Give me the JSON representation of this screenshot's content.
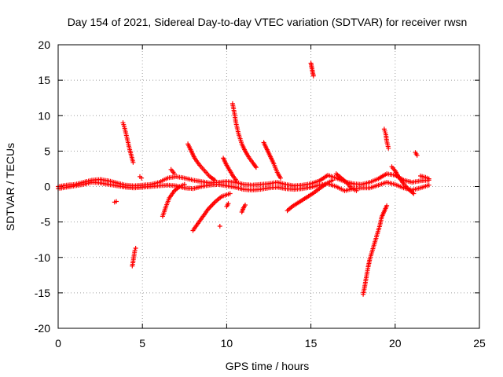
{
  "chart_data": {
    "type": "scatter",
    "title": "Day 154 of 2021, Sidereal Day-to-day VTEC variation (SDTVAR) for receiver rwsn",
    "xlabel": "GPS time / hours",
    "ylabel": "SDTVAR / TECUs",
    "xlim": [
      0,
      25
    ],
    "ylim": [
      -20,
      20
    ],
    "xticks": [
      0,
      5,
      10,
      15,
      20,
      25
    ],
    "yticks": [
      -20,
      -15,
      -10,
      -5,
      0,
      5,
      10,
      15,
      20
    ],
    "grid": true,
    "marker": "+",
    "colors": {
      "series": "#ff0000",
      "axes": "#000000",
      "grid": "#a0a0a0"
    },
    "series": [
      {
        "name": "SDTVAR",
        "tracks": [
          [
            [
              0.0,
              0.0
            ],
            [
              0.5,
              0.2
            ],
            [
              1.0,
              0.3
            ],
            [
              1.5,
              0.6
            ],
            [
              2.0,
              0.9
            ],
            [
              2.5,
              1.0
            ],
            [
              3.0,
              0.8
            ],
            [
              3.5,
              0.5
            ],
            [
              4.0,
              0.2
            ],
            [
              4.5,
              0.1
            ],
            [
              5.0,
              0.2
            ],
            [
              5.5,
              0.3
            ],
            [
              6.0,
              0.6
            ],
            [
              6.5,
              1.2
            ],
            [
              7.0,
              1.4
            ],
            [
              7.5,
              1.2
            ],
            [
              8.0,
              0.9
            ],
            [
              8.5,
              0.7
            ],
            [
              9.0,
              0.5
            ],
            [
              9.5,
              0.6
            ],
            [
              10.0,
              0.7
            ],
            [
              10.5,
              0.6
            ],
            [
              11.0,
              0.3
            ],
            [
              11.5,
              0.2
            ],
            [
              12.0,
              0.3
            ],
            [
              12.5,
              0.4
            ],
            [
              13.0,
              0.6
            ],
            [
              13.5,
              0.3
            ],
            [
              14.0,
              0.1
            ],
            [
              14.5,
              0.2
            ],
            [
              15.0,
              0.4
            ],
            [
              15.5,
              0.8
            ],
            [
              16.0,
              1.6
            ],
            [
              16.5,
              1.2
            ],
            [
              17.0,
              0.7
            ],
            [
              17.5,
              0.4
            ],
            [
              18.0,
              0.3
            ],
            [
              18.5,
              0.6
            ],
            [
              19.0,
              1.1
            ],
            [
              19.5,
              1.8
            ],
            [
              20.0,
              1.6
            ],
            [
              20.5,
              0.9
            ],
            [
              21.0,
              0.6
            ],
            [
              21.5,
              0.8
            ],
            [
              22.0,
              0.9
            ]
          ],
          [
            [
              0.0,
              -0.3
            ],
            [
              0.5,
              -0.1
            ],
            [
              1.0,
              0.1
            ],
            [
              1.5,
              0.3
            ],
            [
              2.0,
              0.6
            ],
            [
              2.5,
              0.5
            ],
            [
              3.0,
              0.3
            ],
            [
              3.5,
              0.1
            ],
            [
              4.0,
              -0.1
            ],
            [
              4.5,
              -0.2
            ],
            [
              5.0,
              -0.1
            ],
            [
              5.5,
              0.0
            ],
            [
              6.0,
              0.1
            ],
            [
              6.5,
              0.2
            ],
            [
              7.0,
              0.1
            ],
            [
              7.5,
              -0.2
            ],
            [
              8.0,
              -0.3
            ],
            [
              8.5,
              0.0
            ],
            [
              9.0,
              0.2
            ],
            [
              9.5,
              0.3
            ],
            [
              10.0,
              0.1
            ],
            [
              10.5,
              -0.1
            ],
            [
              11.0,
              -0.4
            ],
            [
              11.5,
              -0.5
            ],
            [
              12.0,
              -0.4
            ],
            [
              12.5,
              -0.2
            ],
            [
              13.0,
              -0.1
            ],
            [
              13.5,
              -0.3
            ],
            [
              14.0,
              -0.4
            ],
            [
              14.5,
              -0.3
            ],
            [
              15.0,
              -0.1
            ],
            [
              15.5,
              0.2
            ],
            [
              16.0,
              0.4
            ],
            [
              16.5,
              0.0
            ],
            [
              17.0,
              -0.6
            ],
            [
              17.5,
              -0.3
            ],
            [
              18.0,
              -0.2
            ],
            [
              18.5,
              -0.2
            ],
            [
              19.0,
              0.2
            ],
            [
              19.5,
              0.6
            ],
            [
              20.0,
              0.3
            ],
            [
              20.5,
              -0.2
            ],
            [
              21.0,
              -0.5
            ],
            [
              21.5,
              -0.2
            ],
            [
              22.0,
              0.2
            ]
          ],
          [
            [
              3.85,
              9.0
            ],
            [
              3.95,
              8.2
            ],
            [
              4.05,
              7.2
            ],
            [
              4.15,
              6.2
            ],
            [
              4.25,
              5.2
            ],
            [
              4.35,
              4.3
            ],
            [
              4.45,
              3.4
            ]
          ],
          [
            [
              3.35,
              -2.2
            ],
            [
              3.45,
              -2.1
            ]
          ],
          [
            [
              4.4,
              -11.2
            ],
            [
              4.45,
              -10.5
            ],
            [
              4.5,
              -9.8
            ],
            [
              4.55,
              -9.0
            ],
            [
              4.6,
              -8.7
            ]
          ],
          [
            [
              4.85,
              1.4
            ],
            [
              4.95,
              1.2
            ]
          ],
          [
            [
              6.2,
              -4.2
            ],
            [
              6.4,
              -2.8
            ],
            [
              6.6,
              -1.6
            ],
            [
              6.9,
              -0.6
            ],
            [
              7.2,
              0.0
            ],
            [
              7.5,
              0.3
            ]
          ],
          [
            [
              6.7,
              2.4
            ],
            [
              6.9,
              1.8
            ]
          ],
          [
            [
              7.7,
              6.0
            ],
            [
              7.9,
              5.0
            ],
            [
              8.1,
              4.0
            ],
            [
              8.4,
              3.0
            ],
            [
              8.7,
              2.2
            ],
            [
              9.0,
              1.4
            ],
            [
              9.3,
              0.9
            ]
          ],
          [
            [
              8.0,
              -6.2
            ],
            [
              8.3,
              -5.2
            ],
            [
              8.6,
              -4.2
            ],
            [
              8.9,
              -3.2
            ],
            [
              9.3,
              -2.2
            ],
            [
              9.7,
              -1.4
            ],
            [
              10.2,
              -1.0
            ]
          ],
          [
            [
              9.6,
              -5.6
            ]
          ],
          [
            [
              9.8,
              4.0
            ],
            [
              10.0,
              3.0
            ],
            [
              10.2,
              2.2
            ],
            [
              10.4,
              1.4
            ],
            [
              10.6,
              0.8
            ]
          ],
          [
            [
              10.0,
              -2.8
            ],
            [
              10.1,
              -2.4
            ]
          ],
          [
            [
              10.35,
              11.7
            ],
            [
              10.45,
              10.5
            ],
            [
              10.55,
              9.0
            ],
            [
              10.7,
              7.5
            ],
            [
              10.9,
              6.0
            ],
            [
              11.1,
              5.0
            ],
            [
              11.35,
              4.0
            ],
            [
              11.6,
              3.2
            ],
            [
              11.75,
              2.7
            ]
          ],
          [
            [
              10.9,
              -3.6
            ],
            [
              11.0,
              -3.0
            ],
            [
              11.1,
              -2.6
            ]
          ],
          [
            [
              12.2,
              6.2
            ],
            [
              12.4,
              5.2
            ],
            [
              12.6,
              4.2
            ],
            [
              12.8,
              3.2
            ],
            [
              13.0,
              2.0
            ],
            [
              13.2,
              1.2
            ]
          ],
          [
            [
              13.6,
              -3.4
            ],
            [
              13.9,
              -2.8
            ],
            [
              14.3,
              -2.2
            ],
            [
              14.7,
              -1.6
            ],
            [
              15.1,
              -1.0
            ],
            [
              15.5,
              -0.3
            ],
            [
              15.9,
              0.4
            ],
            [
              16.3,
              0.9
            ]
          ],
          [
            [
              15.0,
              17.4
            ],
            [
              15.05,
              16.8
            ],
            [
              15.1,
              16.2
            ],
            [
              15.15,
              15.6
            ]
          ],
          [
            [
              16.5,
              1.8
            ],
            [
              16.8,
              1.2
            ],
            [
              17.1,
              0.6
            ],
            [
              17.4,
              -0.2
            ],
            [
              17.7,
              -0.6
            ]
          ],
          [
            [
              18.1,
              -15.2
            ],
            [
              18.2,
              -14.0
            ],
            [
              18.3,
              -12.6
            ],
            [
              18.4,
              -11.3
            ],
            [
              18.5,
              -10.2
            ],
            [
              18.65,
              -9.0
            ],
            [
              18.8,
              -7.8
            ],
            [
              18.95,
              -6.6
            ],
            [
              19.1,
              -5.4
            ],
            [
              19.2,
              -4.3
            ],
            [
              19.35,
              -3.5
            ],
            [
              19.5,
              -2.7
            ]
          ],
          [
            [
              19.35,
              8.1
            ],
            [
              19.45,
              7.3
            ],
            [
              19.5,
              6.4
            ],
            [
              19.6,
              5.4
            ]
          ],
          [
            [
              19.8,
              2.8
            ],
            [
              20.0,
              2.2
            ],
            [
              20.2,
              1.4
            ],
            [
              20.5,
              0.4
            ],
            [
              20.8,
              -0.4
            ],
            [
              21.1,
              -1.0
            ]
          ],
          [
            [
              21.2,
              4.8
            ],
            [
              21.3,
              4.4
            ]
          ],
          [
            [
              21.5,
              1.5
            ],
            [
              21.8,
              1.3
            ],
            [
              22.0,
              1.1
            ]
          ]
        ]
      }
    ]
  }
}
